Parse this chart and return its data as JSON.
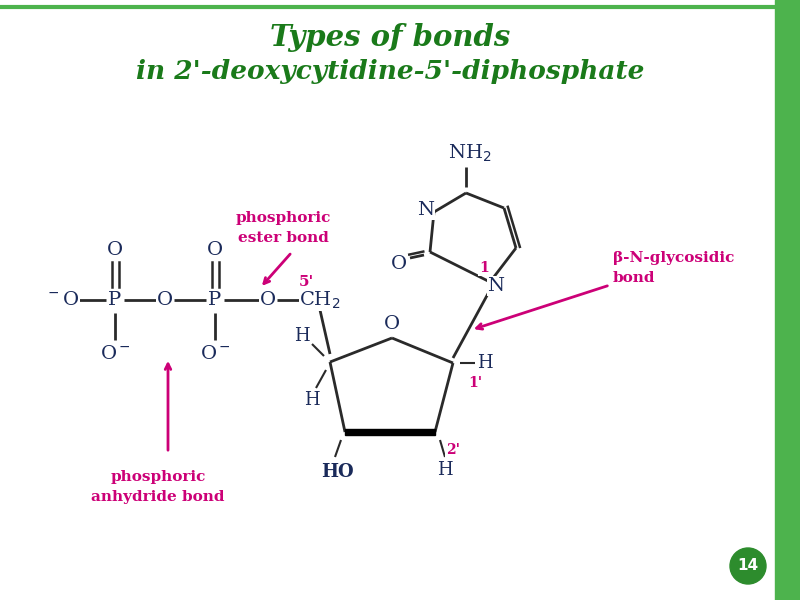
{
  "title_line1": "Types of bonds",
  "title_line2": "in 2’-deoxycytidine-5’-diphosphate",
  "title_color": "#1a7a1a",
  "bg_color": "#ffffff",
  "bond_color": "#2a2a2a",
  "label_magenta": "#cc0077",
  "label_dark": "#1a2a5a",
  "page_num": "14",
  "page_num_bg": "#2d8c2d",
  "border_color": "#4db34d",
  "fig_width": 8.0,
  "fig_height": 6.0
}
